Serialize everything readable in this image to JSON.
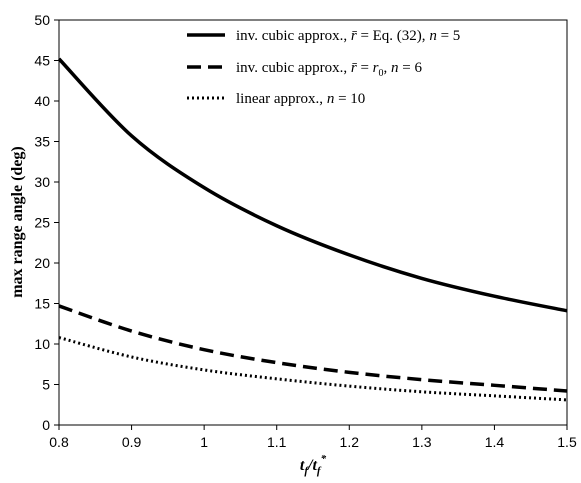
{
  "chart_data": {
    "type": "line",
    "title": "",
    "xlabel": "t_f / t_f^*",
    "ylabel": "max range angle (deg)",
    "xlim": [
      0.8,
      1.5
    ],
    "ylim": [
      0,
      50
    ],
    "x_ticks": [
      "0.8",
      "0.9",
      "1",
      "1.1",
      "1.2",
      "1.3",
      "1.4",
      "1.5"
    ],
    "y_ticks": [
      "0",
      "5",
      "10",
      "15",
      "20",
      "25",
      "30",
      "35",
      "40",
      "45",
      "50"
    ],
    "grid": false,
    "legend_position": "top-right",
    "x": [
      0.8,
      0.9,
      1.0,
      1.1,
      1.2,
      1.3,
      1.4,
      1.5
    ],
    "series": [
      {
        "name": "inv. cubic approx., r̄ = Eq. (32), n = 5",
        "style": "solid",
        "color": "#000000",
        "values": [
          45.2,
          35.7,
          29.3,
          24.6,
          21.0,
          18.1,
          15.9,
          14.1
        ]
      },
      {
        "name": "inv. cubic approx., r̄ = r₀, n = 6",
        "style": "dashed",
        "color": "#000000",
        "values": [
          14.7,
          11.6,
          9.3,
          7.7,
          6.5,
          5.6,
          4.9,
          4.2
        ]
      },
      {
        "name": "linear approx., n = 10",
        "style": "dotted",
        "color": "#000000",
        "values": [
          10.8,
          8.4,
          6.8,
          5.7,
          4.8,
          4.1,
          3.6,
          3.1
        ]
      }
    ]
  }
}
